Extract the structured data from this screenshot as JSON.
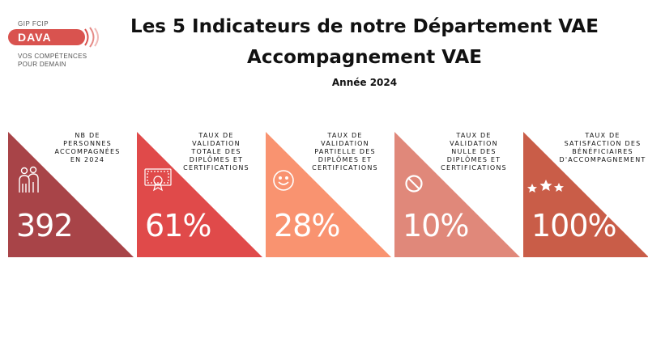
{
  "logo": {
    "top_text": "GIP FCIP",
    "name": "DAVA",
    "tagline_line1": "VOS COMPÉTENCES",
    "tagline_line2": "POUR DEMAIN",
    "color": "#d9534f"
  },
  "title_line1": "Les 5 Indicateurs de notre Département VAE",
  "title_line2": "Accompagnement VAE",
  "subtitle": "Année 2024",
  "cards": [
    {
      "label": "NB DE\nPERSONNES\nACCOMPAGNÉES\nEN 2024",
      "value": "392",
      "color": "#a84448",
      "icon": "people-icon"
    },
    {
      "label": "TAUX DE\nVALIDATION\nTOTALE DES\nDIPLÔMES ET\nCERTIFICATIONS",
      "value": "61%",
      "color": "#e04a4a",
      "icon": "certificate-icon"
    },
    {
      "label": "TAUX DE\nVALIDATION\nPARTIELLE DES\nDIPLÔMES ET\nCERTIFICATIONS",
      "value": "28%",
      "color": "#f99370",
      "icon": "smiley-icon"
    },
    {
      "label": "TAUX DE\nVALIDATION\nNULLE DES\nDIPLÔMES ET\nCERTIFICATIONS",
      "value": "10%",
      "color": "#e0887a",
      "icon": "forbidden-icon"
    },
    {
      "label": "TAUX DE\nSATISFACTION DES\nBÉNÉFICIAIRES\nD'ACCOMPAGNEMENT",
      "value": "100%",
      "color": "#c95d48",
      "icon": "stars-icon"
    }
  ]
}
